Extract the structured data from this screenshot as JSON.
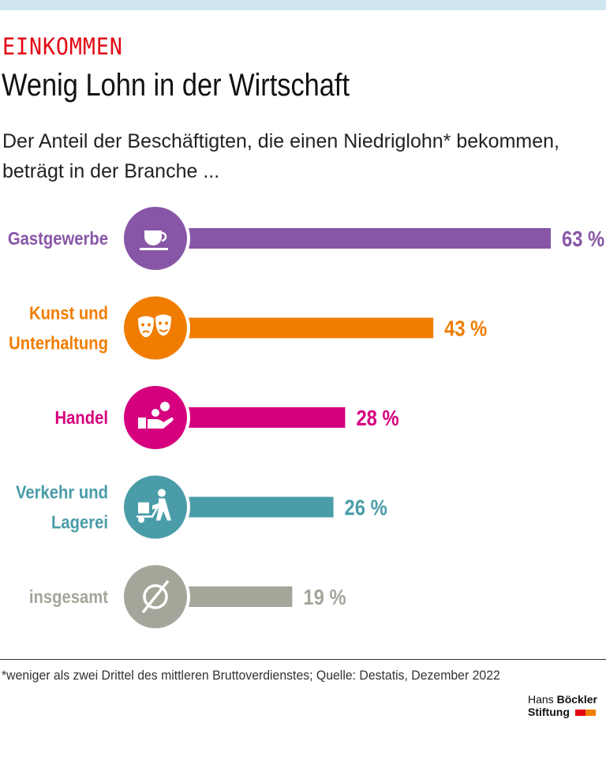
{
  "header": {
    "kicker": "EINKOMMEN",
    "title": "Wenig Lohn in der Wirtschaft",
    "subtitle": "Der Anteil der Beschäftigten, die einen Niedriglohn* bekommen, beträgt in der Branche ..."
  },
  "chart_data": {
    "type": "bar",
    "orientation": "horizontal",
    "unit": "%",
    "categories": [
      [
        "Gastgewerbe"
      ],
      [
        "Kunst und",
        "Unterhaltung"
      ],
      [
        "Handel"
      ],
      [
        "Verkehr und",
        "Lagerei"
      ],
      [
        "insgesamt"
      ]
    ],
    "values": [
      63,
      43,
      28,
      26,
      19
    ],
    "value_labels": [
      "63 %",
      "43 %",
      "28 %",
      "26 %",
      "19 %"
    ],
    "colors": [
      "#8856a7",
      "#f07d00",
      "#d6007e",
      "#4a9ca8",
      "#a6a59a"
    ],
    "icons": [
      "coffee-cup-icon",
      "theater-masks-icon",
      "hand-coins-icon",
      "hand-truck-icon",
      "average-symbol-icon"
    ],
    "xlim": [
      0,
      63
    ],
    "grid": false
  },
  "footer": {
    "footnote": "*weniger als zwei Drittel des mittleren Bruttoverdienstes; Quelle: Destatis, Dezember 2022",
    "logo_line1a": "Hans",
    "logo_line1b": "Böckler",
    "logo_line2": "Stiftung",
    "logo_colors": [
      "#e30613",
      "#f07d00"
    ]
  }
}
